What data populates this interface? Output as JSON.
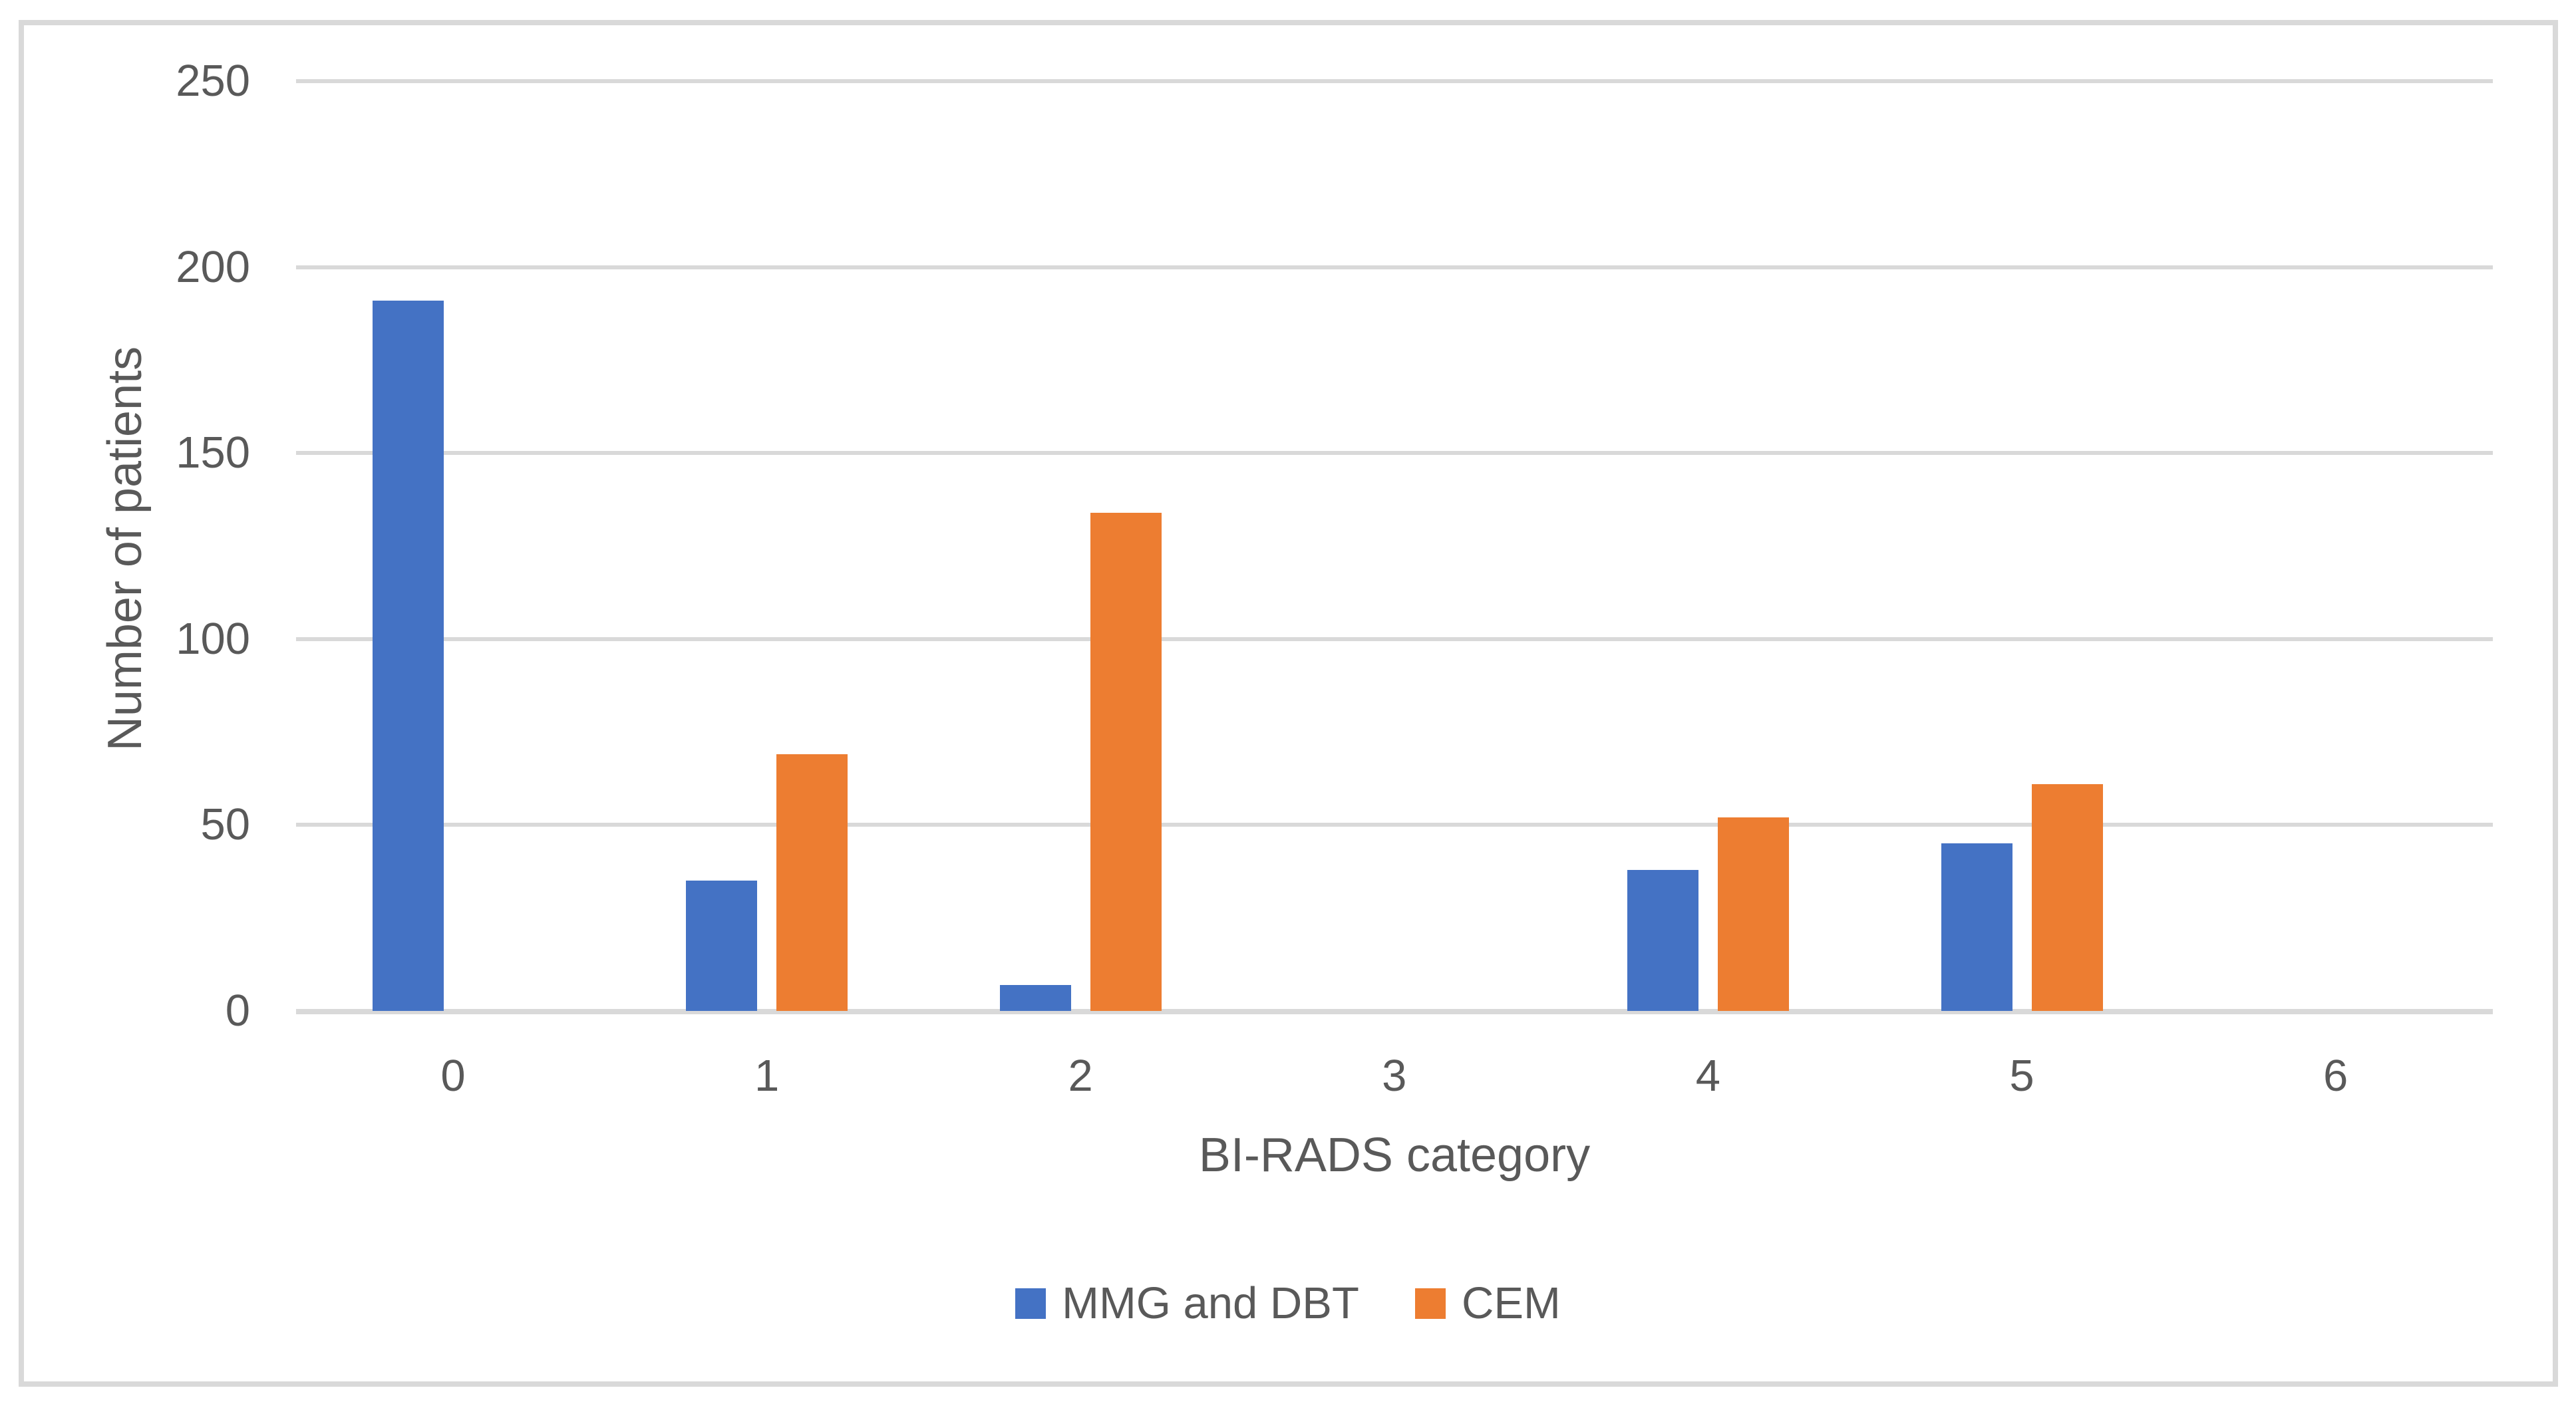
{
  "chart_data": {
    "type": "bar",
    "categories": [
      "0",
      "1",
      "2",
      "3",
      "4",
      "5",
      "6"
    ],
    "series": [
      {
        "name": "MMG and DBT",
        "color": "#4472C4",
        "values": [
          191,
          35,
          7,
          0,
          38,
          45,
          0
        ]
      },
      {
        "name": "CEM",
        "color": "#ED7D31",
        "values": [
          0,
          69,
          134,
          0,
          52,
          61,
          0
        ]
      }
    ],
    "title": "",
    "xlabel": "BI-RADS category",
    "ylabel": "Number of patients",
    "ylim": [
      0,
      250
    ],
    "ytick_step": 50,
    "yticks": [
      "0",
      "50",
      "100",
      "150",
      "200",
      "250"
    ],
    "grid": true,
    "legend_position": "bottom"
  },
  "colors": {
    "gridline": "#D9D9D9",
    "axis_text": "#595959",
    "frame_border": "#D9D9D9",
    "background": "#FFFFFF"
  }
}
